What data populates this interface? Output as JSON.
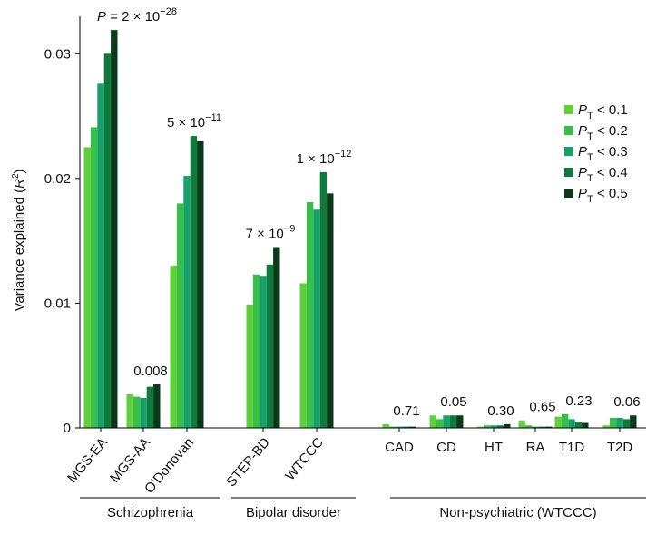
{
  "chart_data": {
    "type": "bar",
    "ylabel": {
      "text": "Variance explained (",
      "var": "R",
      "exp": "2",
      "end": ")"
    },
    "categories": [
      "MGS-EA",
      "MGS-AA",
      "O'Donovan",
      "STEP-BD",
      "WTCCC",
      "CAD",
      "CD",
      "HT",
      "RA",
      "T1D",
      "T2D"
    ],
    "legend_symbol": {
      "main": "P",
      "sub": "T"
    },
    "series": [
      {
        "name": " < 0.1",
        "color": "#5fd03c",
        "values": [
          0.0225,
          0.0027,
          0.013,
          0.0099,
          0.0116,
          0.0003,
          0.001,
          0.0001,
          0.0006,
          0.0009,
          0.0002
        ]
      },
      {
        "name": " < 0.2",
        "color": "#36c04a",
        "values": [
          0.0241,
          0.0025,
          0.018,
          0.0123,
          0.0181,
          0.0001,
          0.0007,
          0.0002,
          0.0002,
          0.0011,
          0.0008
        ]
      },
      {
        "name": " < 0.3",
        "color": "#16a06a",
        "values": [
          0.0276,
          0.0024,
          0.0202,
          0.0122,
          0.0175,
          0.0001,
          0.001,
          0.0002,
          0.0001,
          0.0007,
          0.0008
        ]
      },
      {
        "name": " < 0.4",
        "color": "#0e7a3c",
        "values": [
          0.03,
          0.0033,
          0.0234,
          0.0131,
          0.0205,
          0.0001,
          0.001,
          0.0002,
          0.0001,
          0.0005,
          0.0007
        ]
      },
      {
        "name": " < 0.5",
        "color": "#0a3a18",
        "values": [
          0.0319,
          0.0035,
          0.023,
          0.0145,
          0.0188,
          0.0001,
          0.001,
          0.0003,
          0.0001,
          0.0004,
          0.001
        ]
      }
    ],
    "annotations": [
      {
        "prefix": "P",
        "eq": " = 2 × 10",
        "exp": "−28"
      },
      {
        "eq": "0.008"
      },
      {
        "eq": "5 × 10",
        "exp": "−11"
      },
      {
        "eq": "7 × 10",
        "exp": "−9"
      },
      {
        "eq": "1 × 10",
        "exp": "−12"
      },
      {
        "eq": "0.71"
      },
      {
        "eq": "0.05"
      },
      {
        "eq": "0.30"
      },
      {
        "eq": "0.65"
      },
      {
        "eq": "0.23"
      },
      {
        "eq": "0.06"
      }
    ],
    "groups": [
      "Schizophrenia",
      "Bipolar disorder",
      "Non-psychiatric (WTCCC)"
    ],
    "ylim": [
      0,
      0.033
    ],
    "yticks": [
      0,
      0.01,
      0.02,
      0.03
    ],
    "grid": false,
    "legend": "right"
  }
}
